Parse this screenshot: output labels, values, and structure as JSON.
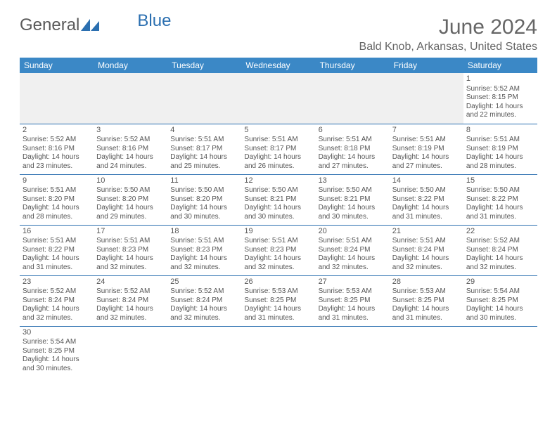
{
  "logo": {
    "text1": "General",
    "text2": "Blue"
  },
  "title": "June 2024",
  "location": "Bald Knob, Arkansas, United States",
  "daynames": [
    "Sunday",
    "Monday",
    "Tuesday",
    "Wednesday",
    "Thursday",
    "Friday",
    "Saturday"
  ],
  "colors": {
    "header_bg": "#3b88c6",
    "border": "#2b6fb0",
    "text": "#555",
    "title": "#666"
  },
  "weeks": [
    [
      null,
      null,
      null,
      null,
      null,
      null,
      {
        "n": "1",
        "rise": "5:52 AM",
        "set": "8:15 PM",
        "dl": "14 hours and 22 minutes."
      }
    ],
    [
      {
        "n": "2",
        "rise": "5:52 AM",
        "set": "8:16 PM",
        "dl": "14 hours and 23 minutes."
      },
      {
        "n": "3",
        "rise": "5:52 AM",
        "set": "8:16 PM",
        "dl": "14 hours and 24 minutes."
      },
      {
        "n": "4",
        "rise": "5:51 AM",
        "set": "8:17 PM",
        "dl": "14 hours and 25 minutes."
      },
      {
        "n": "5",
        "rise": "5:51 AM",
        "set": "8:17 PM",
        "dl": "14 hours and 26 minutes."
      },
      {
        "n": "6",
        "rise": "5:51 AM",
        "set": "8:18 PM",
        "dl": "14 hours and 27 minutes."
      },
      {
        "n": "7",
        "rise": "5:51 AM",
        "set": "8:19 PM",
        "dl": "14 hours and 27 minutes."
      },
      {
        "n": "8",
        "rise": "5:51 AM",
        "set": "8:19 PM",
        "dl": "14 hours and 28 minutes."
      }
    ],
    [
      {
        "n": "9",
        "rise": "5:51 AM",
        "set": "8:20 PM",
        "dl": "14 hours and 28 minutes."
      },
      {
        "n": "10",
        "rise": "5:50 AM",
        "set": "8:20 PM",
        "dl": "14 hours and 29 minutes."
      },
      {
        "n": "11",
        "rise": "5:50 AM",
        "set": "8:20 PM",
        "dl": "14 hours and 30 minutes."
      },
      {
        "n": "12",
        "rise": "5:50 AM",
        "set": "8:21 PM",
        "dl": "14 hours and 30 minutes."
      },
      {
        "n": "13",
        "rise": "5:50 AM",
        "set": "8:21 PM",
        "dl": "14 hours and 30 minutes."
      },
      {
        "n": "14",
        "rise": "5:50 AM",
        "set": "8:22 PM",
        "dl": "14 hours and 31 minutes."
      },
      {
        "n": "15",
        "rise": "5:50 AM",
        "set": "8:22 PM",
        "dl": "14 hours and 31 minutes."
      }
    ],
    [
      {
        "n": "16",
        "rise": "5:51 AM",
        "set": "8:22 PM",
        "dl": "14 hours and 31 minutes."
      },
      {
        "n": "17",
        "rise": "5:51 AM",
        "set": "8:23 PM",
        "dl": "14 hours and 32 minutes."
      },
      {
        "n": "18",
        "rise": "5:51 AM",
        "set": "8:23 PM",
        "dl": "14 hours and 32 minutes."
      },
      {
        "n": "19",
        "rise": "5:51 AM",
        "set": "8:23 PM",
        "dl": "14 hours and 32 minutes."
      },
      {
        "n": "20",
        "rise": "5:51 AM",
        "set": "8:24 PM",
        "dl": "14 hours and 32 minutes."
      },
      {
        "n": "21",
        "rise": "5:51 AM",
        "set": "8:24 PM",
        "dl": "14 hours and 32 minutes."
      },
      {
        "n": "22",
        "rise": "5:52 AM",
        "set": "8:24 PM",
        "dl": "14 hours and 32 minutes."
      }
    ],
    [
      {
        "n": "23",
        "rise": "5:52 AM",
        "set": "8:24 PM",
        "dl": "14 hours and 32 minutes."
      },
      {
        "n": "24",
        "rise": "5:52 AM",
        "set": "8:24 PM",
        "dl": "14 hours and 32 minutes."
      },
      {
        "n": "25",
        "rise": "5:52 AM",
        "set": "8:24 PM",
        "dl": "14 hours and 32 minutes."
      },
      {
        "n": "26",
        "rise": "5:53 AM",
        "set": "8:25 PM",
        "dl": "14 hours and 31 minutes."
      },
      {
        "n": "27",
        "rise": "5:53 AM",
        "set": "8:25 PM",
        "dl": "14 hours and 31 minutes."
      },
      {
        "n": "28",
        "rise": "5:53 AM",
        "set": "8:25 PM",
        "dl": "14 hours and 31 minutes."
      },
      {
        "n": "29",
        "rise": "5:54 AM",
        "set": "8:25 PM",
        "dl": "14 hours and 30 minutes."
      }
    ],
    [
      {
        "n": "30",
        "rise": "5:54 AM",
        "set": "8:25 PM",
        "dl": "14 hours and 30 minutes."
      },
      null,
      null,
      null,
      null,
      null,
      null
    ]
  ],
  "labels": {
    "sunrise": "Sunrise: ",
    "sunset": "Sunset: ",
    "daylight": "Daylight: "
  }
}
